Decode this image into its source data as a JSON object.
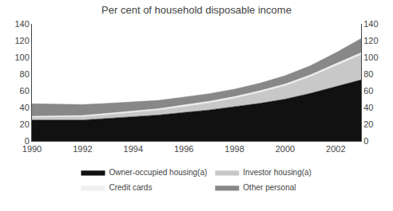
{
  "chart_data": {
    "type": "area",
    "title": "Per cent of household disposable income",
    "x": [
      1990,
      1991,
      1992,
      1993,
      1994,
      1995,
      1996,
      1997,
      1998,
      1999,
      2000,
      2001,
      2002,
      2003
    ],
    "series": [
      {
        "name": "Owner-occupied housing(a)",
        "color": "#111111",
        "values": [
          25,
          25,
          25,
          27,
          29,
          31,
          34,
          37,
          41,
          45,
          50,
          57,
          65,
          73
        ]
      },
      {
        "name": "Investor housing(a)",
        "color": "#c8c8c8",
        "values": [
          3,
          3.5,
          4,
          4.5,
          5,
          6,
          7,
          8.5,
          10,
          13,
          16,
          20,
          25,
          30
        ]
      },
      {
        "name": "Credit cards",
        "color": "#f0f0f0",
        "values": [
          1.5,
          1.5,
          1.5,
          1.5,
          1.5,
          1.5,
          2,
          2,
          2,
          2,
          2,
          2,
          2.5,
          2.5
        ]
      },
      {
        "name": "Other personal",
        "color": "#888888",
        "values": [
          15,
          14,
          13,
          12,
          11,
          10,
          9.5,
          9,
          9,
          9,
          10,
          11,
          13,
          17
        ]
      }
    ],
    "stacked": true,
    "xlim": [
      1990,
      2003
    ],
    "xticks": [
      1990,
      1992,
      1994,
      1996,
      1998,
      2000,
      2002
    ],
    "ylim": [
      0,
      140
    ],
    "yticks": [
      0,
      20,
      40,
      60,
      80,
      100,
      120,
      140
    ],
    "y2lim": [
      0,
      140
    ],
    "y2ticks": [
      0,
      20,
      40,
      60,
      80,
      100,
      120,
      140
    ],
    "grid": false,
    "legend": "bottom"
  }
}
